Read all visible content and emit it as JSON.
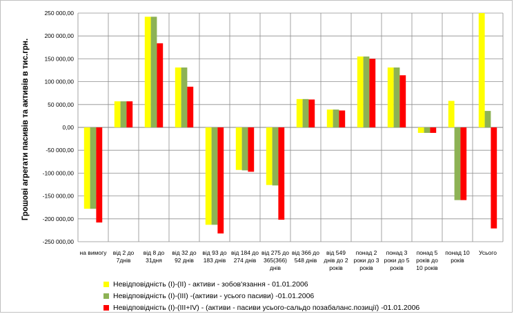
{
  "chart_data": {
    "type": "bar",
    "ylabel": "Грошові агрегати  пасивів та активів  в тис.грн.",
    "ylim": [
      -250000,
      250000
    ],
    "ytick_step": 50000,
    "ytick_labels": [
      "250 000,00",
      "200 000,00",
      "150 000,00",
      "100 000,00",
      "50 000,00",
      "0,00",
      "-50 000,00",
      "-100 000,00",
      "-150 000,00",
      "-200 000,00",
      "-250 000,00"
    ],
    "grid": true,
    "legend_position": "bottom",
    "categories": [
      [
        "на вимогу"
      ],
      [
        "від 2 до",
        "7днів"
      ],
      [
        "від 8 до",
        "31дня"
      ],
      [
        "від 32 до",
        "92 днів"
      ],
      [
        "від 93 до",
        "183 днів"
      ],
      [
        "від 184 до",
        "274 днів"
      ],
      [
        "від 275 до",
        "365(366)",
        "днів"
      ],
      [
        "від 366 до",
        "548 днів"
      ],
      [
        "від 549",
        "днів до 2",
        "років"
      ],
      [
        "понад 2",
        "роки до 3",
        "років"
      ],
      [
        "понад 3",
        "роки до 5",
        "років"
      ],
      [
        "понад 5",
        "років до",
        "10 років"
      ],
      [
        "понад 10",
        "років"
      ],
      [
        "Усього"
      ]
    ],
    "series": [
      {
        "name": "Невідповідність (I)-(II) - активи - зобов'язання - 01.01.2006",
        "color": "#ffff00",
        "values": [
          -178000,
          57000,
          242000,
          131000,
          -213000,
          -93000,
          -126000,
          62000,
          39000,
          155000,
          131000,
          -12000,
          58000,
          250000
        ]
      },
      {
        "name": "Невідповідність (I)-(III) -(активи - усього пасиви) -01.01.2006",
        "color": "#8db255",
        "values": [
          -178000,
          57000,
          242000,
          131000,
          -213000,
          -94000,
          -127000,
          62000,
          39000,
          155000,
          131000,
          -12000,
          -159000,
          36000
        ]
      },
      {
        "name": "Невідповідність (I)-(III+IV) - (активи - пасиви усього-сальдо позабаланс.позиції) -01.01.2006",
        "color": "#ff0000",
        "values": [
          -208000,
          57000,
          184000,
          89000,
          -232000,
          -97000,
          -202000,
          61000,
          37000,
          150000,
          114000,
          -12000,
          -159000,
          -221000
        ]
      }
    ]
  }
}
